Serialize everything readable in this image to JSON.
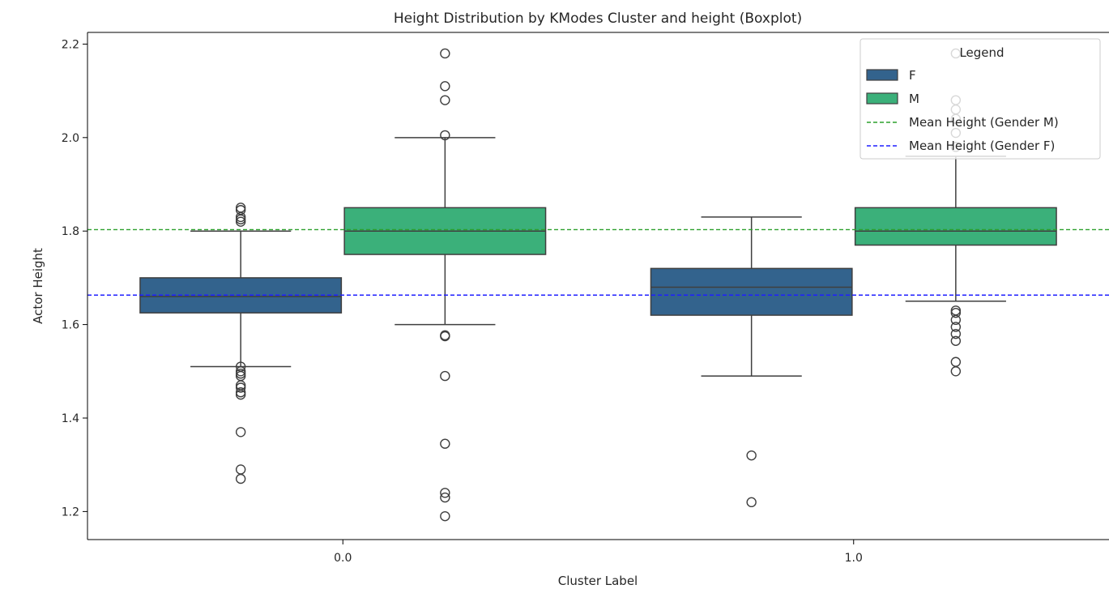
{
  "chart_data": {
    "type": "boxplot",
    "title": "Height Distribution by KModes Cluster and height (Boxplot)",
    "xlabel": "Cluster Label",
    "ylabel": "Actor Height",
    "categories": [
      "0.0",
      "1.0"
    ],
    "ylim": [
      1.14,
      2.225
    ],
    "yticks": [
      "1.2",
      "1.4",
      "1.6",
      "1.8",
      "2.0",
      "2.2"
    ],
    "grid": false,
    "legend": {
      "title": "Legend",
      "placement": "top-right",
      "entries": [
        "F",
        "M",
        "Mean Height (Gender M)",
        "Mean Height (Gender F)"
      ]
    },
    "series": [
      {
        "name": "F",
        "color": "#33638d",
        "boxes": [
          {
            "category": "0.0",
            "whisker_low": 1.51,
            "q1": 1.625,
            "median": 1.66,
            "q3": 1.7,
            "whisker_high": 1.8,
            "outliers": [
              1.85,
              1.845,
              1.83,
              1.825,
              1.82,
              1.51,
              1.5,
              1.495,
              1.49,
              1.47,
              1.465,
              1.455,
              1.45,
              1.37,
              1.29,
              1.27
            ]
          },
          {
            "category": "1.0",
            "whisker_low": 1.49,
            "q1": 1.62,
            "median": 1.68,
            "q3": 1.72,
            "whisker_high": 1.83,
            "outliers": [
              1.32,
              1.22
            ]
          }
        ]
      },
      {
        "name": "M",
        "color": "#3bb07a",
        "boxes": [
          {
            "category": "0.0",
            "whisker_low": 1.6,
            "q1": 1.75,
            "median": 1.8,
            "q3": 1.85,
            "whisker_high": 2.0,
            "outliers": [
              2.18,
              2.11,
              2.08,
              2.005,
              1.577,
              1.575,
              1.49,
              1.345,
              1.24,
              1.23,
              1.19
            ]
          },
          {
            "category": "1.0",
            "whisker_low": 1.65,
            "q1": 1.77,
            "median": 1.8,
            "q3": 1.85,
            "whisker_high": 1.96,
            "outliers": [
              2.18,
              2.08,
              2.06,
              2.04,
              2.01,
              1.98,
              1.63,
              1.625,
              1.61,
              1.595,
              1.58,
              1.565,
              1.52,
              1.5
            ]
          }
        ]
      }
    ],
    "reference_lines": [
      {
        "name": "Mean Height (Gender M)",
        "y": 1.803,
        "color": "#2ca02c",
        "style": "dashed"
      },
      {
        "name": "Mean Height (Gender F)",
        "y": 1.663,
        "color": "#1f1fff",
        "style": "dashed"
      }
    ]
  }
}
